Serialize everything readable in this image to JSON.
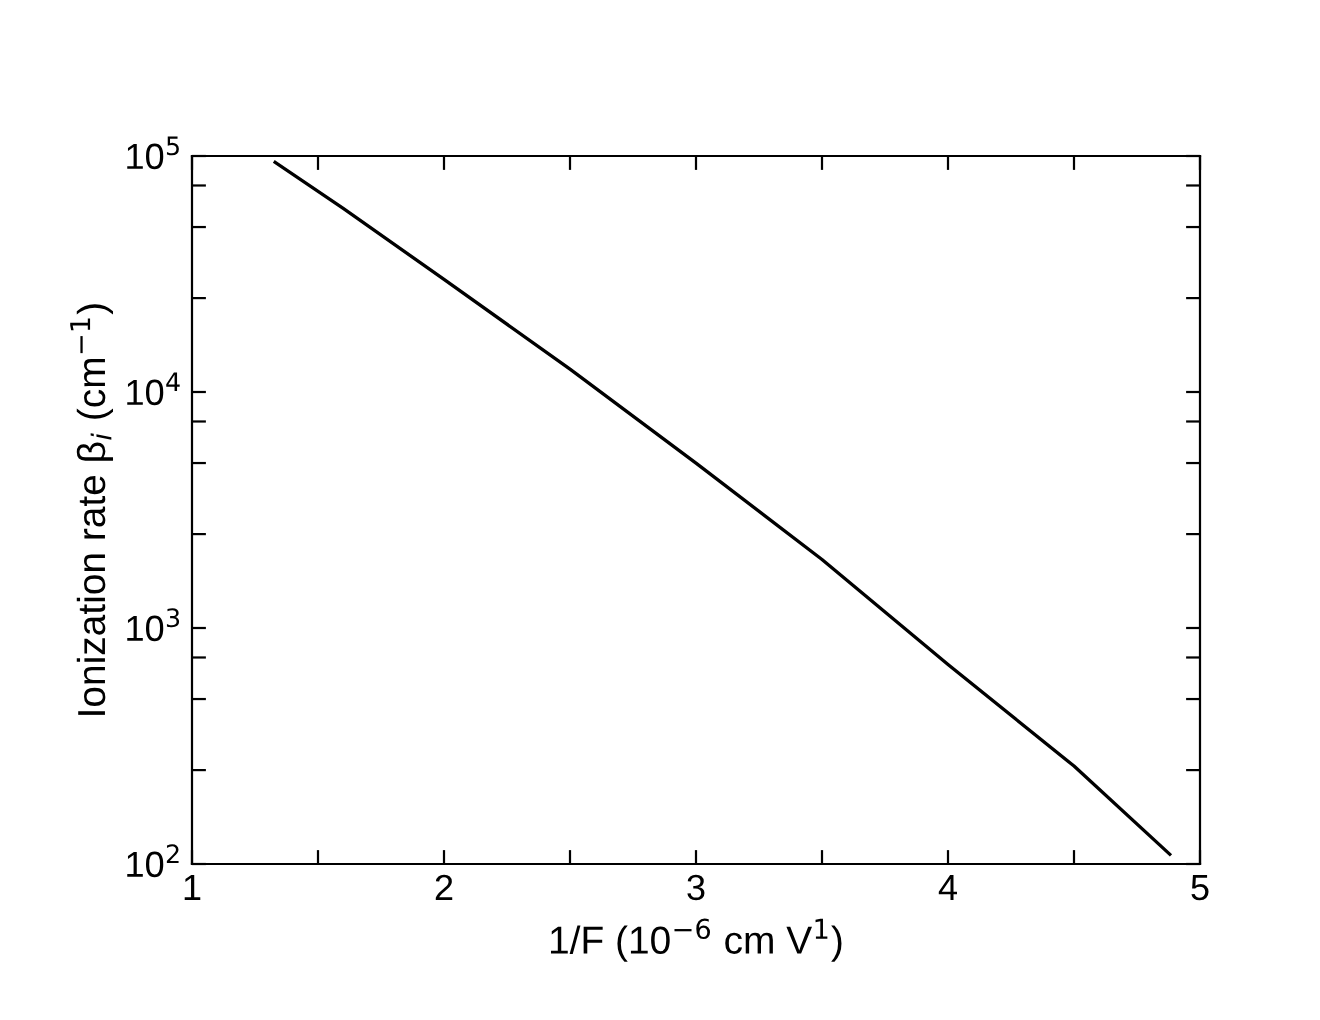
{
  "chart_data": {
    "type": "line",
    "xlabel": "1/F (10$^{−6}$ cm V$^{1}$)",
    "ylabel": "Ionization rate β$_{i}$ (cm$^{−1}$)",
    "log": "y",
    "x": [
      1.33,
      1.6,
      2,
      2.5,
      3,
      3.5,
      4,
      4.5,
      4.88
    ],
    "series": [
      {
        "color": "#000000",
        "values": [
          94000,
          60000,
          30000,
          12500,
          5000,
          1950,
          700,
          260,
          110
        ]
      }
    ],
    "xlim": [
      1,
      5
    ],
    "ylim": [
      100,
      100000
    ],
    "xticks": [
      1,
      {
        "value": 1.5,
        "label": null
      },
      2,
      {
        "value": 2.5,
        "label": null
      },
      3,
      {
        "value": 3.5,
        "label": null
      },
      4,
      {
        "value": 4.5,
        "label": null
      },
      5
    ],
    "yticks": [
      {
        "value": 100,
        "label": "10$^{2}$"
      },
      {
        "value": 250,
        "label": null
      },
      {
        "value": 500,
        "label": null
      },
      {
        "value": 750,
        "label": null
      },
      {
        "value": 1000,
        "label": "10$^{3}$"
      },
      {
        "value": 2500,
        "label": null
      },
      {
        "value": 5000,
        "label": null
      },
      {
        "value": 7500,
        "label": null
      },
      {
        "value": 10000,
        "label": "10$^{4}$"
      },
      {
        "value": 25000,
        "label": null
      },
      {
        "value": 50000,
        "label": null
      },
      {
        "value": 75000,
        "label": null
      },
      {
        "value": 100000,
        "label": "10$^{5}$"
      }
    ],
    "grid": false,
    "legend": false,
    "marker": "none",
    "line_style": "solid"
  }
}
